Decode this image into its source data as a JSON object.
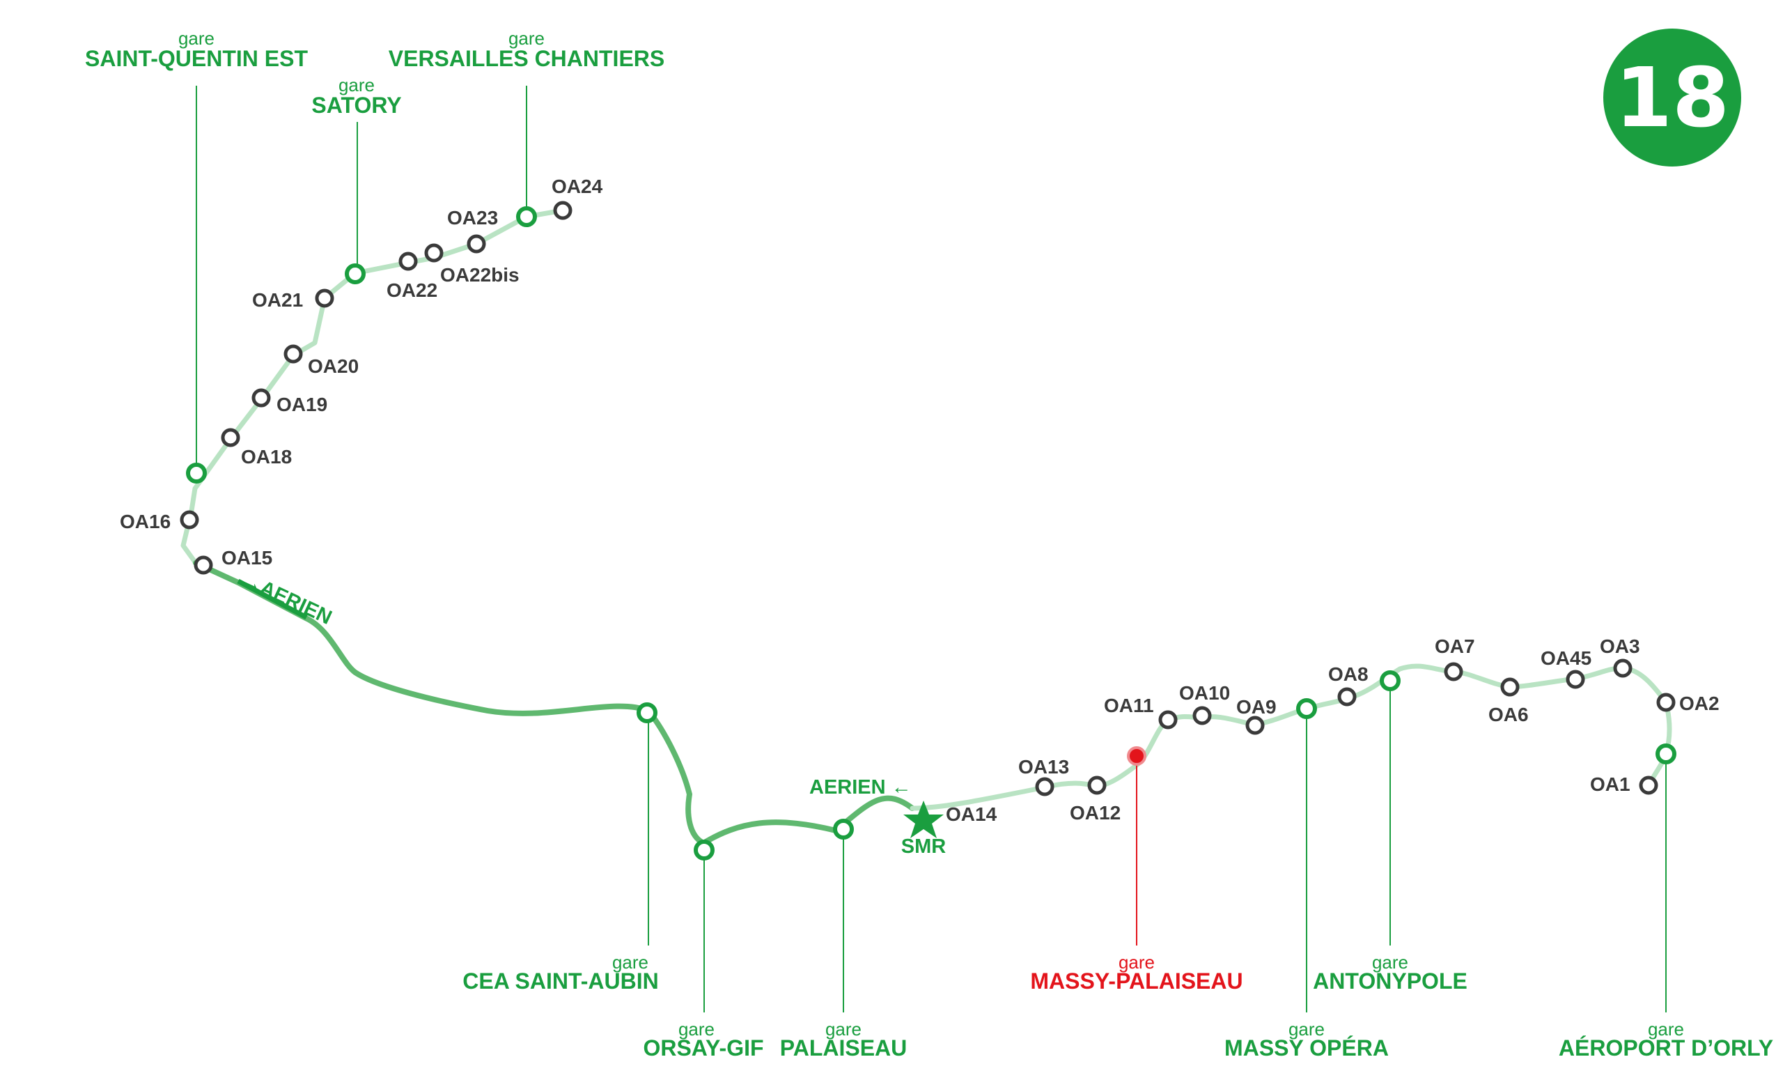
{
  "line": {
    "number": "18",
    "color": "#1a9e3f"
  },
  "colors": {
    "station": "#1a9e3f",
    "highlight": "#e3141b",
    "ouvrage": "#3a3a3a",
    "track_light": "#b9e3c3",
    "track_dark": "#5fb86f"
  },
  "legend_word": "gare",
  "stations": [
    {
      "id": "saint-quentin-est",
      "name": "SAINT-QUENTIN EST",
      "gare": "gare"
    },
    {
      "id": "versailles-chantiers",
      "name": "VERSAILLES CHANTIERS",
      "gare": "gare"
    },
    {
      "id": "satory",
      "name": "SATORY",
      "gare": "gare"
    },
    {
      "id": "cea-saint-aubin",
      "name": "CEA SAINT-AUBIN",
      "gare": "gare"
    },
    {
      "id": "orsay-gif",
      "name": "ORSAY-GIF",
      "gare": "gare"
    },
    {
      "id": "palaiseau",
      "name": "PALAISEAU",
      "gare": "gare"
    },
    {
      "id": "massy-palaiseau",
      "name": "MASSY-PALAISEAU",
      "gare": "gare",
      "highlight": true
    },
    {
      "id": "massy-opera",
      "name": "MASSY OPÉRA",
      "gare": "gare"
    },
    {
      "id": "antonypole",
      "name": "ANTONYPOLE",
      "gare": "gare"
    },
    {
      "id": "aeroport-dorly",
      "name": "AÉROPORT D’ORLY",
      "gare": "gare"
    }
  ],
  "ouvrages": [
    "OA24",
    "OA23",
    "OA22bis",
    "OA22",
    "OA21",
    "OA20",
    "OA19",
    "OA18",
    "OA16",
    "OA15",
    "OA14",
    "OA13",
    "OA12",
    "OA11",
    "OA10",
    "OA9",
    "OA8",
    "OA7",
    "OA6",
    "OA45",
    "OA3",
    "OA2",
    "OA1"
  ],
  "annotations": {
    "aerien_1": "→AERIEN",
    "aerien_2": "AERIEN ←",
    "smr": "SMR"
  }
}
